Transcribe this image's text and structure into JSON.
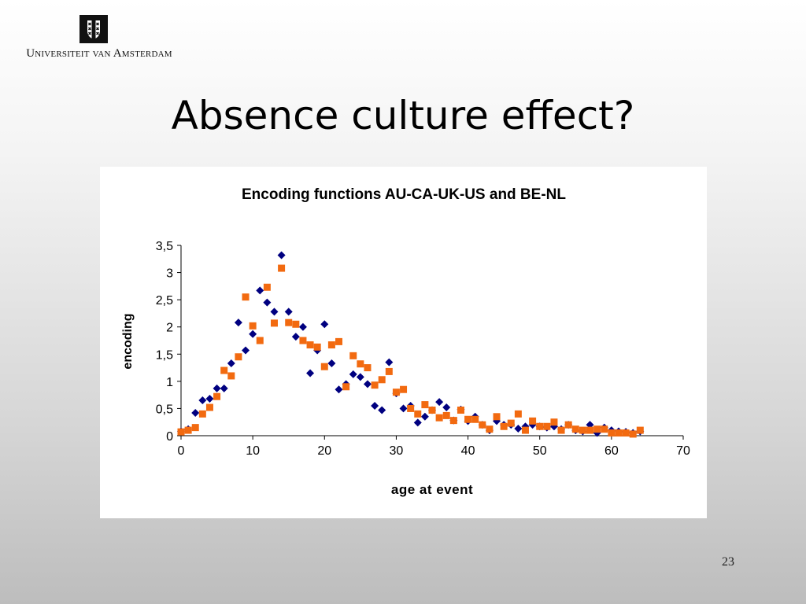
{
  "header": {
    "university_name": "Universiteit van Amsterdam",
    "logo_icon": "uva-crest-icon"
  },
  "slide": {
    "title": "Absence culture effect?",
    "page_number": "23"
  },
  "colors": {
    "series_au": "#000080",
    "series_be": "#F26A10",
    "axis": "#000000",
    "background_top": "#ffffff",
    "background_bottom": "#bdbdbd"
  },
  "chart_data": {
    "type": "scatter",
    "title": "Encoding functions AU-CA-UK-US and BE-NL",
    "xlabel": "age at event",
    "ylabel": "encoding",
    "xlim": [
      0,
      70
    ],
    "ylim": [
      0,
      3.5
    ],
    "x_ticks": [
      0,
      10,
      20,
      30,
      40,
      50,
      60,
      70
    ],
    "x_tick_labels": [
      "0",
      "10",
      "20",
      "30",
      "40",
      "50",
      "60",
      "70"
    ],
    "y_ticks": [
      0,
      0.5,
      1,
      1.5,
      2,
      2.5,
      3,
      3.5
    ],
    "y_tick_labels": [
      "0",
      "0,5",
      "1",
      "1,5",
      "2",
      "2,5",
      "3",
      "3,5"
    ],
    "grid": false,
    "legend": "none",
    "series": [
      {
        "marker": "diamond",
        "color": "#000080",
        "points": [
          [
            0,
            0.08
          ],
          [
            1,
            0.12
          ],
          [
            2,
            0.42
          ],
          [
            3,
            0.65
          ],
          [
            4,
            0.68
          ],
          [
            5,
            0.87
          ],
          [
            6,
            0.87
          ],
          [
            7,
            1.33
          ],
          [
            8,
            2.08
          ],
          [
            9,
            1.57
          ],
          [
            10,
            1.87
          ],
          [
            11,
            2.67
          ],
          [
            12,
            2.45
          ],
          [
            13,
            2.28
          ],
          [
            14,
            3.32
          ],
          [
            15,
            2.28
          ],
          [
            16,
            1.82
          ],
          [
            17,
            2.0
          ],
          [
            18,
            1.15
          ],
          [
            19,
            1.57
          ],
          [
            20,
            2.05
          ],
          [
            21,
            1.33
          ],
          [
            22,
            0.85
          ],
          [
            23,
            0.95
          ],
          [
            24,
            1.13
          ],
          [
            25,
            1.08
          ],
          [
            26,
            0.95
          ],
          [
            27,
            0.55
          ],
          [
            28,
            0.47
          ],
          [
            29,
            1.35
          ],
          [
            30,
            0.78
          ],
          [
            31,
            0.5
          ],
          [
            32,
            0.55
          ],
          [
            33,
            0.24
          ],
          [
            34,
            0.35
          ],
          [
            35,
            0.47
          ],
          [
            36,
            0.62
          ],
          [
            37,
            0.52
          ],
          [
            38,
            0.28
          ],
          [
            39,
            0.48
          ],
          [
            40,
            0.27
          ],
          [
            41,
            0.35
          ],
          [
            42,
            0.2
          ],
          [
            43,
            0.1
          ],
          [
            44,
            0.27
          ],
          [
            45,
            0.2
          ],
          [
            46,
            0.2
          ],
          [
            47,
            0.13
          ],
          [
            48,
            0.17
          ],
          [
            49,
            0.2
          ],
          [
            50,
            0.17
          ],
          [
            51,
            0.15
          ],
          [
            52,
            0.17
          ],
          [
            53,
            0.12
          ],
          [
            54,
            0.2
          ],
          [
            55,
            0.1
          ],
          [
            56,
            0.08
          ],
          [
            57,
            0.2
          ],
          [
            58,
            0.05
          ],
          [
            59,
            0.15
          ],
          [
            60,
            0.1
          ],
          [
            61,
            0.08
          ],
          [
            62,
            0.07
          ],
          [
            63,
            0.05
          ],
          [
            64,
            0.08
          ]
        ]
      },
      {
        "marker": "square",
        "color": "#F26A10",
        "points": [
          [
            0,
            0.07
          ],
          [
            1,
            0.1
          ],
          [
            2,
            0.15
          ],
          [
            3,
            0.4
          ],
          [
            4,
            0.52
          ],
          [
            5,
            0.72
          ],
          [
            6,
            1.2
          ],
          [
            7,
            1.1
          ],
          [
            8,
            1.45
          ],
          [
            9,
            2.55
          ],
          [
            10,
            2.02
          ],
          [
            11,
            1.75
          ],
          [
            12,
            2.73
          ],
          [
            13,
            2.07
          ],
          [
            14,
            3.08
          ],
          [
            15,
            2.08
          ],
          [
            16,
            2.05
          ],
          [
            17,
            1.75
          ],
          [
            18,
            1.67
          ],
          [
            19,
            1.63
          ],
          [
            20,
            1.27
          ],
          [
            21,
            1.67
          ],
          [
            22,
            1.73
          ],
          [
            23,
            0.9
          ],
          [
            24,
            1.47
          ],
          [
            25,
            1.32
          ],
          [
            26,
            1.25
          ],
          [
            27,
            0.93
          ],
          [
            28,
            1.03
          ],
          [
            29,
            1.18
          ],
          [
            30,
            0.8
          ],
          [
            31,
            0.85
          ],
          [
            32,
            0.5
          ],
          [
            33,
            0.4
          ],
          [
            34,
            0.57
          ],
          [
            35,
            0.47
          ],
          [
            36,
            0.33
          ],
          [
            37,
            0.37
          ],
          [
            38,
            0.28
          ],
          [
            39,
            0.47
          ],
          [
            40,
            0.3
          ],
          [
            41,
            0.3
          ],
          [
            42,
            0.2
          ],
          [
            43,
            0.12
          ],
          [
            44,
            0.35
          ],
          [
            45,
            0.17
          ],
          [
            46,
            0.23
          ],
          [
            47,
            0.4
          ],
          [
            48,
            0.1
          ],
          [
            49,
            0.27
          ],
          [
            50,
            0.17
          ],
          [
            51,
            0.17
          ],
          [
            52,
            0.25
          ],
          [
            53,
            0.1
          ],
          [
            54,
            0.2
          ],
          [
            55,
            0.12
          ],
          [
            56,
            0.1
          ],
          [
            57,
            0.1
          ],
          [
            58,
            0.12
          ],
          [
            59,
            0.12
          ],
          [
            60,
            0.05
          ],
          [
            61,
            0.05
          ],
          [
            62,
            0.05
          ],
          [
            63,
            0.03
          ],
          [
            64,
            0.1
          ]
        ]
      }
    ]
  }
}
